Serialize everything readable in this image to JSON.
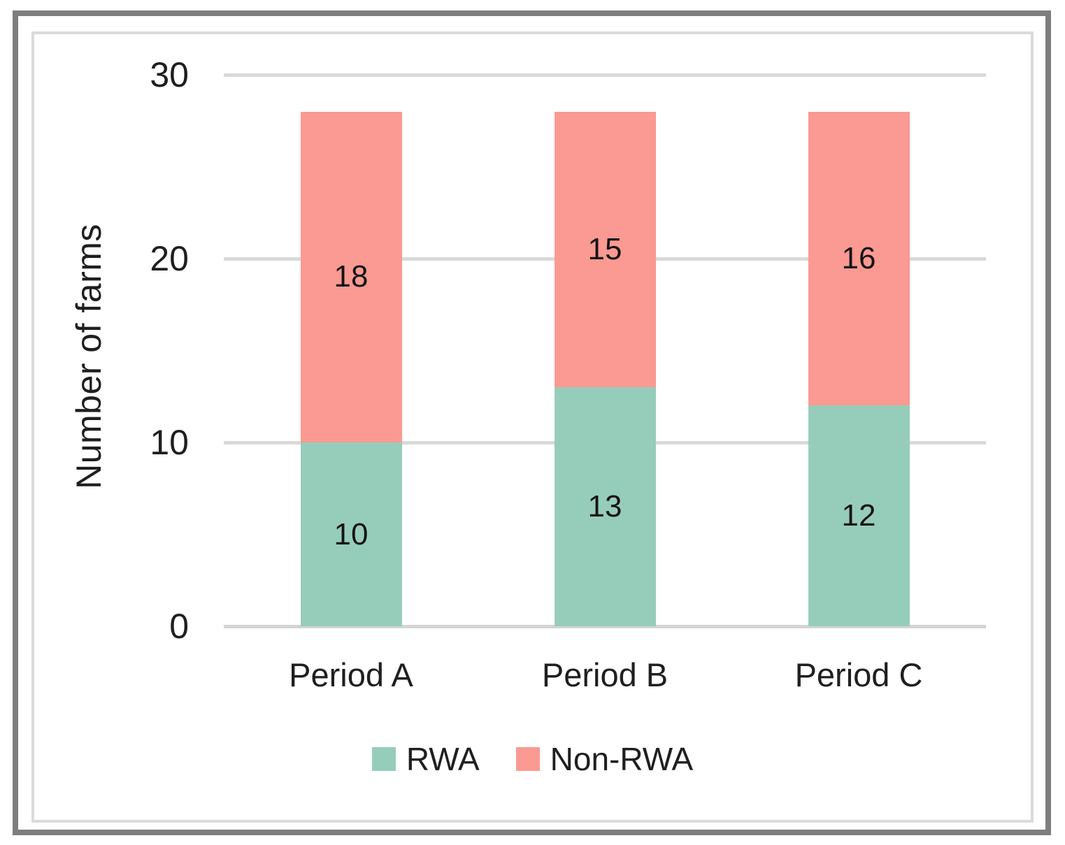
{
  "chart_data": {
    "type": "bar",
    "stacked": true,
    "title": "",
    "xlabel": "",
    "ylabel": "Number of farms",
    "categories": [
      "Period A",
      "Period B",
      "Period C"
    ],
    "series": [
      {
        "name": "RWA",
        "color": "#96cdba",
        "values": [
          10,
          13,
          12
        ]
      },
      {
        "name": "Non-RWA",
        "color": "#fa9a92",
        "values": [
          18,
          15,
          16
        ]
      }
    ],
    "ylim": [
      0,
      30
    ],
    "yticks": [
      0,
      10,
      20,
      30
    ],
    "grid": true,
    "data_labels": true,
    "legend_position": "bottom"
  },
  "colors": {
    "gridline": "#d9d9d9",
    "axis_line": "#d4d4d4",
    "outer_border": "#7e7e7e",
    "inner_border": "#dbdbdb",
    "text": "#1f1f1f"
  }
}
